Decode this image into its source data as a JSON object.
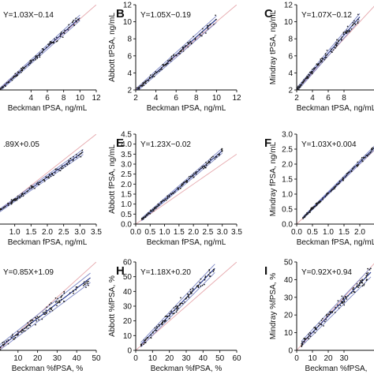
{
  "colors": {
    "points": "#1a1a1a",
    "fit_line": "#2b3a8f",
    "ci_line": "#7a84c4",
    "identity_line": "#e6a8ad",
    "axis": "#111111"
  },
  "chart_data": [
    {
      "panel": "A",
      "letter": "",
      "type": "scatter",
      "equation": "Y=1.03X−0.14",
      "xlabel": "Beckman tPSA, ng/mL",
      "ylabel": "",
      "xlim": [
        0,
        12
      ],
      "ylim": [
        0,
        12
      ],
      "xticks": [
        4,
        6,
        8,
        10,
        12
      ],
      "yticks": [],
      "fit": {
        "slope": 1.03,
        "intercept": -0.14,
        "x_range": [
          0,
          10
        ]
      },
      "identity_line": true,
      "n_points": 110,
      "seed": 11,
      "noise": 0.35
    },
    {
      "panel": "B",
      "letter": "B",
      "type": "scatter",
      "equation": "Y=1.05X−0.19",
      "xlabel": "Beckman tPSA, ng/mL",
      "ylabel": "Abbott tPSA, ng/mL",
      "xlim": [
        2,
        12
      ],
      "ylim": [
        2,
        12
      ],
      "xticks": [
        2,
        4,
        6,
        8,
        10,
        12
      ],
      "yticks": [
        2,
        4,
        6,
        8,
        10,
        12
      ],
      "fit": {
        "slope": 1.05,
        "intercept": -0.19,
        "x_range": [
          2,
          10
        ]
      },
      "identity_line": true,
      "n_points": 110,
      "seed": 23,
      "noise": 0.35
    },
    {
      "panel": "C",
      "letter": "C",
      "type": "scatter",
      "equation": "Y=1.07X−0.12",
      "xlabel": "Beckman tPSA, ng/mL",
      "ylabel": "Mindray tPSA, ng/mL",
      "xlim": [
        2,
        12
      ],
      "ylim": [
        2,
        12
      ],
      "xticks": [
        2,
        4,
        6,
        8
      ],
      "yticks": [
        2,
        4,
        6,
        8,
        10,
        12
      ],
      "fit": {
        "slope": 1.07,
        "intercept": -0.12,
        "x_range": [
          2,
          10
        ]
      },
      "identity_line": true,
      "n_points": 110,
      "seed": 37,
      "noise": 0.35
    },
    {
      "panel": "D",
      "letter": "",
      "type": "scatter",
      "equation": ".89X+0.05",
      "xlabel": "Beckman fPSA, ng/mL",
      "ylabel": "",
      "xlim": [
        0.5,
        3.5
      ],
      "ylim": [
        0,
        3.5
      ],
      "xticks": [
        1.0,
        1.5,
        2.0,
        2.5,
        3.0,
        3.5
      ],
      "yticks": [],
      "fit": {
        "slope": 0.89,
        "intercept": 0.05,
        "x_range": [
          0.5,
          3.1
        ]
      },
      "identity_line": true,
      "n_points": 110,
      "seed": 41,
      "noise": 0.09
    },
    {
      "panel": "E",
      "letter": "E",
      "type": "scatter",
      "equation": "Y=1.23X−0.02",
      "xlabel": "Beckman fPSA, ng/mL",
      "ylabel": "Abbott fPSA, ng/mL",
      "xlim": [
        0,
        3.5
      ],
      "ylim": [
        0,
        4.5
      ],
      "xticks": [
        0.0,
        0.5,
        1.0,
        1.5,
        2.0,
        2.5,
        3.0,
        3.5
      ],
      "yticks": [
        0.0,
        0.5,
        1.0,
        1.5,
        2.0,
        2.5,
        3.0,
        3.5,
        4.0,
        4.5
      ],
      "fit": {
        "slope": 1.23,
        "intercept": -0.02,
        "x_range": [
          0.2,
          3.0
        ]
      },
      "identity_line": true,
      "n_points": 120,
      "seed": 53,
      "noise": 0.11
    },
    {
      "panel": "F",
      "letter": "F",
      "type": "scatter",
      "equation": "Y=1.03X+0.004",
      "xlabel": "Beckman fPSA, ng/mL",
      "ylabel": "Mindray fPSA, ng/mL",
      "xlim": [
        0,
        2.5
      ],
      "ylim": [
        0,
        3.0
      ],
      "xticks": [
        0.0,
        0.5,
        1.0,
        1.5,
        2.0
      ],
      "yticks": [
        0.0,
        0.5,
        1.0,
        1.5,
        2.0,
        2.5,
        3.0
      ],
      "fit": {
        "slope": 1.03,
        "intercept": 0.004,
        "x_range": [
          0.2,
          2.6
        ]
      },
      "identity_line": true,
      "n_points": 120,
      "seed": 67,
      "noise": 0.06
    },
    {
      "panel": "G",
      "letter": "",
      "type": "scatter",
      "equation": "Y=0.85X+1.09",
      "xlabel": "Beckman %fPSA, %",
      "ylabel": "",
      "xlim": [
        0,
        50
      ],
      "ylim": [
        0,
        50
      ],
      "xticks": [
        10,
        20,
        30,
        40,
        50
      ],
      "yticks": [],
      "fit": {
        "slope": 0.85,
        "intercept": 1.09,
        "x_range": [
          0,
          47
        ]
      },
      "identity_line": true,
      "n_points": 110,
      "seed": 71,
      "noise": 2.4
    },
    {
      "panel": "H",
      "letter": "H",
      "type": "scatter",
      "equation": "Y=1.18X+0.20",
      "xlabel": "Beckman %fPSA, %",
      "ylabel": "Abbott %fPSA, %",
      "xlim": [
        0,
        60
      ],
      "ylim": [
        0,
        60
      ],
      "xticks": [
        0,
        10,
        20,
        30,
        40,
        50,
        60
      ],
      "yticks": [
        0,
        10,
        20,
        30,
        40,
        50,
        60
      ],
      "fit": {
        "slope": 1.18,
        "intercept": 0.2,
        "x_range": [
          3,
          47
        ]
      },
      "identity_line": true,
      "n_points": 110,
      "seed": 83,
      "noise": 2.6
    },
    {
      "panel": "I",
      "letter": "I",
      "type": "scatter",
      "equation": "Y=0.92X+0.94",
      "xlabel": "Beckman %fPSA,",
      "ylabel": "Mindray %fPSA, %",
      "xlim": [
        0,
        50
      ],
      "ylim": [
        0,
        50
      ],
      "xticks": [
        0,
        10,
        20,
        30
      ],
      "yticks": [
        0,
        10,
        20,
        30,
        40,
        50
      ],
      "fit": {
        "slope": 0.92,
        "intercept": 0.94,
        "x_range": [
          3,
          47
        ]
      },
      "identity_line": true,
      "n_points": 110,
      "seed": 97,
      "noise": 2.4
    }
  ]
}
